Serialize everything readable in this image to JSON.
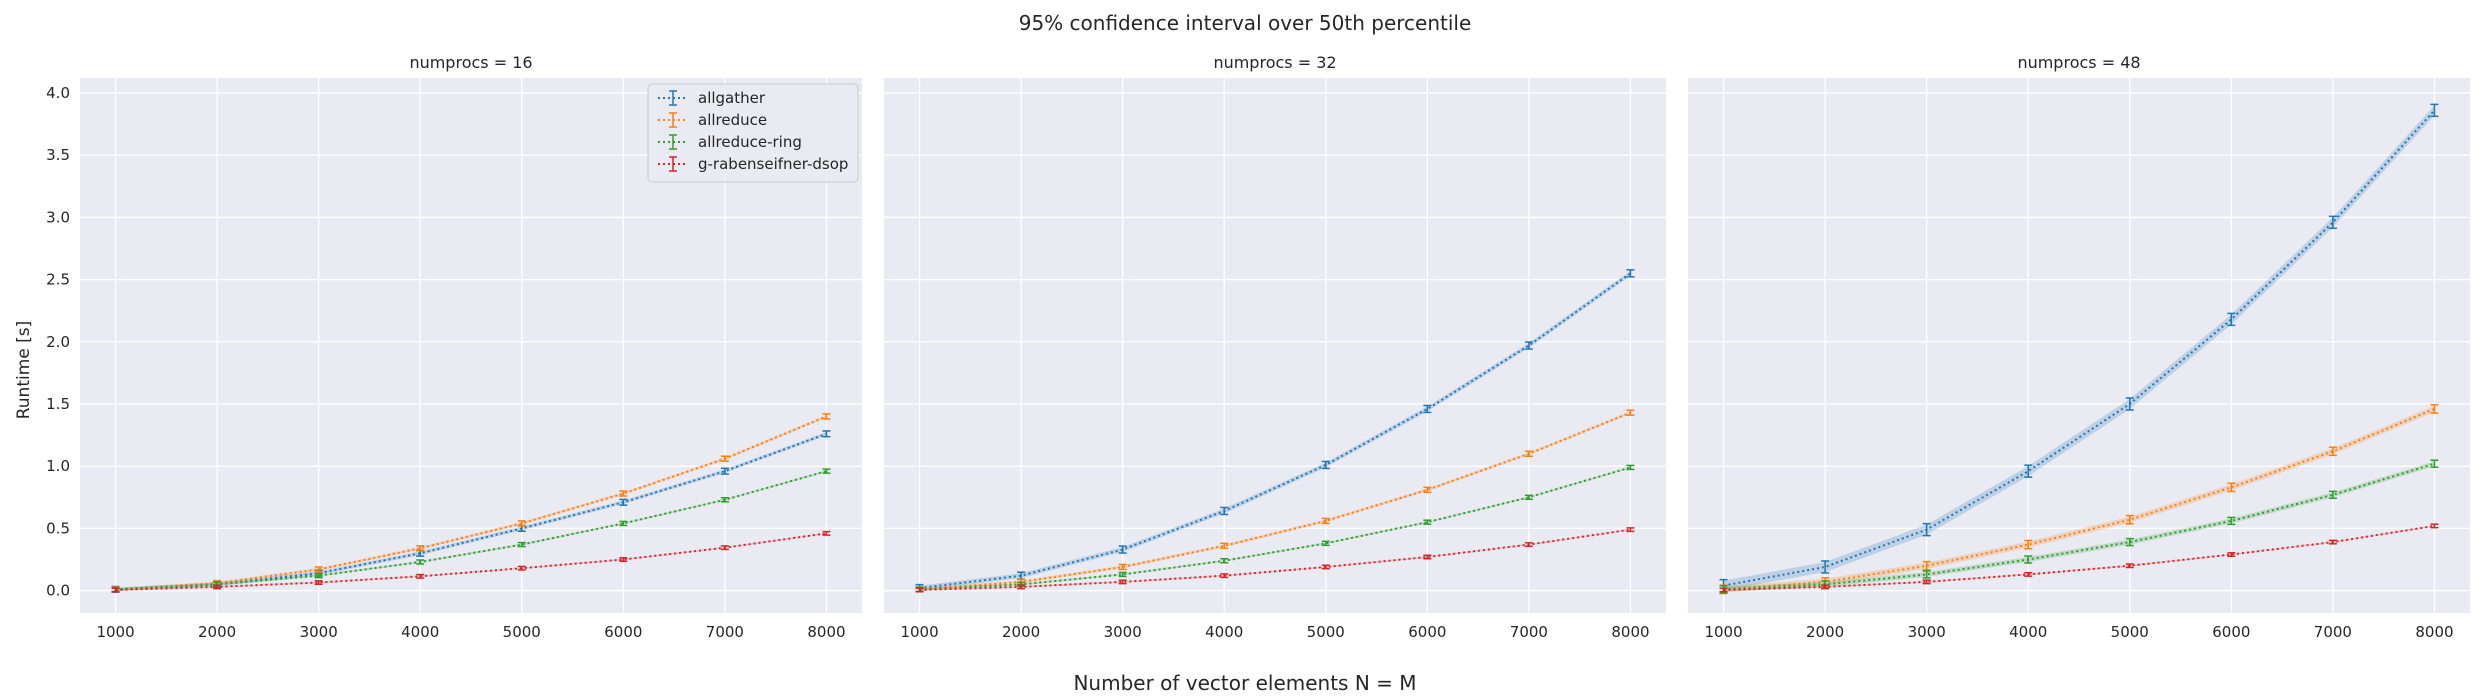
{
  "figure": {
    "title": "95% confidence interval over 50th percentile",
    "xlabel": "Number of vector elements N = M",
    "ylabel": "Runtime [s]"
  },
  "colors": {
    "allgather": "#1f77b4",
    "allreduce": "#ff7f0e",
    "allreduce-ring": "#2ca02c",
    "g-rabenseifner-dsop": "#d62728",
    "panel_bg": "#eaeaf2",
    "grid": "#ffffff"
  },
  "legend": {
    "position": "top-right of first panel",
    "entries": [
      "allgather",
      "allreduce",
      "allreduce-ring",
      "g-rabenseifner-dsop"
    ]
  },
  "chart_data": [
    {
      "type": "line",
      "title": "numprocs = 16",
      "xlabel": "",
      "ylabel": "",
      "x": [
        1000,
        2000,
        3000,
        4000,
        5000,
        6000,
        7000,
        8000
      ],
      "xlim": [
        650,
        8350
      ],
      "ylim": [
        -0.18,
        4.12
      ],
      "xticks": [
        "1000",
        "2000",
        "3000",
        "4000",
        "5000",
        "6000",
        "7000",
        "8000"
      ],
      "yticks": [
        "0.0",
        "0.5",
        "1.0",
        "1.5",
        "2.0",
        "2.5",
        "3.0",
        "3.5",
        "4.0"
      ],
      "grid": true,
      "series": [
        {
          "name": "allgather",
          "values": [
            0.01,
            0.05,
            0.14,
            0.3,
            0.5,
            0.71,
            0.96,
            1.26
          ],
          "err": 0.015
        },
        {
          "name": "allreduce",
          "values": [
            0.01,
            0.06,
            0.17,
            0.34,
            0.54,
            0.78,
            1.06,
            1.4
          ],
          "err": 0.012
        },
        {
          "name": "allreduce-ring",
          "values": [
            0.01,
            0.05,
            0.12,
            0.23,
            0.37,
            0.54,
            0.73,
            0.96
          ],
          "err": 0.008
        },
        {
          "name": "g-rabenseifner-dsop",
          "values": [
            0.005,
            0.03,
            0.065,
            0.115,
            0.18,
            0.25,
            0.345,
            0.46
          ],
          "err": 0.006
        }
      ]
    },
    {
      "type": "line",
      "title": "numprocs = 32",
      "xlabel": "",
      "ylabel": "",
      "x": [
        1000,
        2000,
        3000,
        4000,
        5000,
        6000,
        7000,
        8000
      ],
      "xlim": [
        650,
        8350
      ],
      "ylim": [
        -0.18,
        4.12
      ],
      "xticks": [
        "1000",
        "2000",
        "3000",
        "4000",
        "5000",
        "6000",
        "7000",
        "8000"
      ],
      "yticks": [],
      "grid": true,
      "series": [
        {
          "name": "allgather",
          "values": [
            0.02,
            0.12,
            0.33,
            0.64,
            1.01,
            1.46,
            1.97,
            2.55
          ],
          "err": 0.02
        },
        {
          "name": "allreduce",
          "values": [
            0.01,
            0.07,
            0.19,
            0.36,
            0.56,
            0.81,
            1.1,
            1.43
          ],
          "err": 0.012
        },
        {
          "name": "allreduce-ring",
          "values": [
            0.01,
            0.05,
            0.13,
            0.24,
            0.38,
            0.55,
            0.75,
            0.99
          ],
          "err": 0.008
        },
        {
          "name": "g-rabenseifner-dsop",
          "values": [
            0.005,
            0.03,
            0.07,
            0.12,
            0.19,
            0.27,
            0.37,
            0.49
          ],
          "err": 0.006
        }
      ]
    },
    {
      "type": "line",
      "title": "numprocs = 48",
      "xlabel": "",
      "ylabel": "",
      "x": [
        1000,
        2000,
        3000,
        4000,
        5000,
        6000,
        7000,
        8000
      ],
      "xlim": [
        650,
        8350
      ],
      "ylim": [
        -0.18,
        4.12
      ],
      "xticks": [
        "1000",
        "2000",
        "3000",
        "4000",
        "5000",
        "6000",
        "7000",
        "8000"
      ],
      "yticks": [],
      "grid": true,
      "series": [
        {
          "name": "allgather",
          "values": [
            0.04,
            0.19,
            0.49,
            0.96,
            1.5,
            2.18,
            2.96,
            3.86
          ],
          "err": 0.04
        },
        {
          "name": "allreduce",
          "values": [
            0.01,
            0.07,
            0.2,
            0.37,
            0.57,
            0.83,
            1.12,
            1.46
          ],
          "err": 0.025
        },
        {
          "name": "allreduce-ring",
          "values": [
            0.01,
            0.05,
            0.13,
            0.25,
            0.39,
            0.56,
            0.77,
            1.02
          ],
          "err": 0.02
        },
        {
          "name": "g-rabenseifner-dsop",
          "values": [
            0.005,
            0.03,
            0.07,
            0.13,
            0.2,
            0.29,
            0.39,
            0.52
          ],
          "err": 0.006
        }
      ]
    }
  ]
}
